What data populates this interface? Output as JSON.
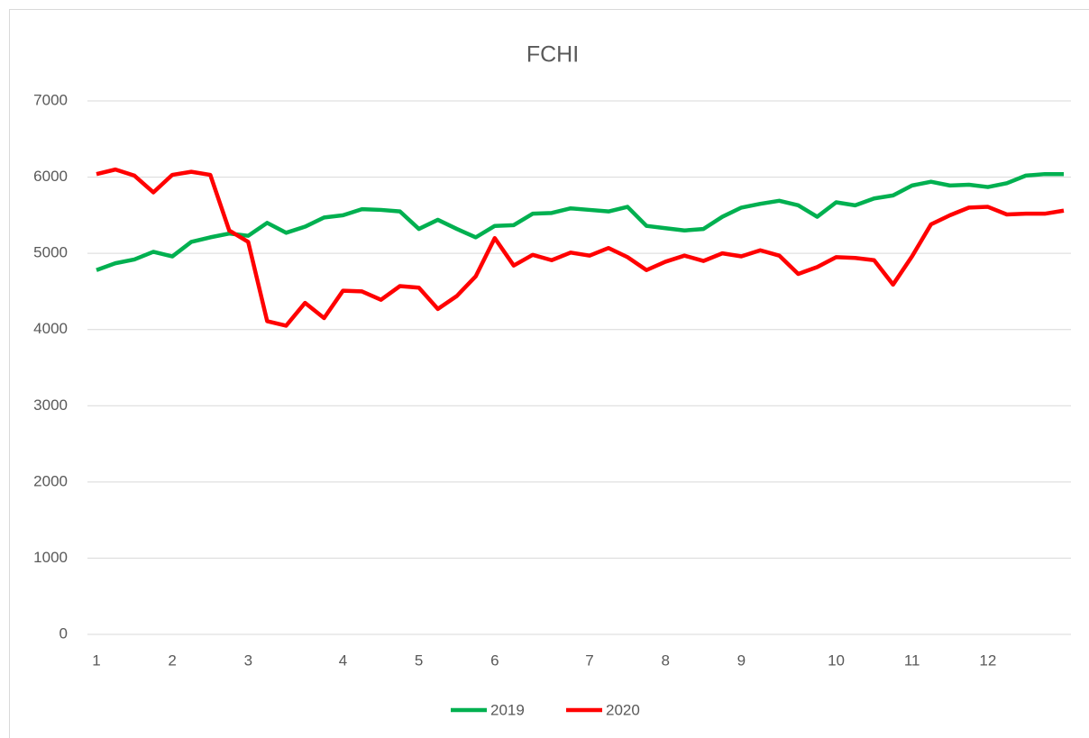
{
  "chart_data": {
    "type": "line",
    "title": "FCHI",
    "categories": [
      "1",
      null,
      null,
      null,
      "2",
      null,
      null,
      null,
      "3",
      null,
      null,
      null,
      null,
      "4",
      null,
      null,
      null,
      "5",
      null,
      null,
      null,
      "6",
      null,
      null,
      null,
      null,
      "7",
      null,
      null,
      null,
      "8",
      null,
      null,
      null,
      "9",
      null,
      null,
      null,
      null,
      "10",
      null,
      null,
      null,
      "11",
      null,
      null,
      null,
      "12",
      null,
      null,
      null,
      null
    ],
    "series": [
      {
        "name": "2019",
        "color": "#00b050",
        "values": [
          4780,
          4870,
          4920,
          5020,
          4960,
          5150,
          5210,
          5260,
          5230,
          5400,
          5270,
          5350,
          5470,
          5500,
          5580,
          5570,
          5550,
          5320,
          5440,
          5320,
          5210,
          5360,
          5370,
          5520,
          5530,
          5590,
          5570,
          5550,
          5610,
          5360,
          5330,
          5300,
          5320,
          5480,
          5600,
          5650,
          5690,
          5630,
          5480,
          5670,
          5630,
          5720,
          5760,
          5890,
          5940,
          5890,
          5900,
          5870,
          5920,
          6020,
          6040,
          6040
        ]
      },
      {
        "name": "2020",
        "color": "#ff0000",
        "values": [
          6040,
          6100,
          6020,
          5800,
          6030,
          6070,
          6030,
          5300,
          5150,
          4110,
          4050,
          4350,
          4150,
          4510,
          4500,
          4390,
          4570,
          4550,
          4270,
          4440,
          4700,
          5200,
          4840,
          4980,
          4910,
          5010,
          4970,
          5070,
          4950,
          4780,
          4890,
          4970,
          4900,
          5000,
          4960,
          5040,
          4970,
          4730,
          4820,
          4950,
          4940,
          4910,
          4590,
          4960,
          5380,
          5500,
          5600,
          5610,
          5510,
          5520,
          5520,
          5560
        ]
      }
    ],
    "ylim": [
      0,
      7000
    ],
    "yticks": [
      0,
      1000,
      2000,
      3000,
      4000,
      5000,
      6000,
      7000
    ],
    "grid": true,
    "legend": "bottom"
  }
}
